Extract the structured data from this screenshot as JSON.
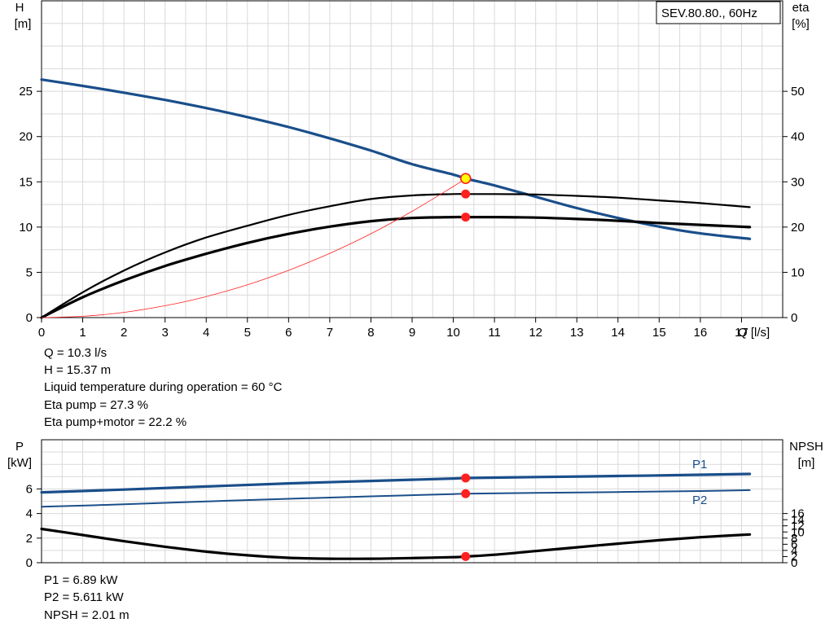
{
  "chart_data": [
    {
      "type": "line",
      "legend_box": "SEV.80.80., 60Hz",
      "xlabel": "Q [l/s]",
      "xlim": [
        0,
        18
      ],
      "x_ticks": [
        0,
        1,
        2,
        3,
        4,
        5,
        6,
        7,
        8,
        9,
        10,
        11,
        12,
        13,
        14,
        15,
        16,
        17
      ],
      "y_left": {
        "label_line1": "H",
        "label_line2": "[m]",
        "lim": [
          0,
          35
        ],
        "ticks": [
          0,
          5,
          10,
          15,
          20,
          25
        ]
      },
      "y_right": {
        "label_line1": "eta",
        "label_line2": "[%]",
        "lim": [
          0,
          70
        ],
        "ticks": [
          0,
          10,
          20,
          30,
          40,
          50
        ]
      },
      "grid": true,
      "series": [
        {
          "axis": "left",
          "color": "#1a4e8a",
          "x": [
            0,
            1,
            2,
            3,
            4,
            5,
            6,
            7,
            8,
            9,
            10,
            10.3,
            11,
            12,
            13,
            14,
            15,
            16,
            17.2
          ],
          "y": [
            26.3,
            25.6,
            24.85,
            24.05,
            23.15,
            22.15,
            21.05,
            19.8,
            18.45,
            16.95,
            15.8,
            15.37,
            14.6,
            13.35,
            12.1,
            11.0,
            10.05,
            9.3,
            8.7
          ]
        },
        {
          "axis": "right",
          "color": "#000000",
          "x": [
            0,
            1,
            2,
            3,
            4,
            5,
            6,
            7,
            8,
            9,
            10,
            10.3,
            11,
            12,
            13,
            14,
            15,
            16,
            17.2
          ],
          "y": [
            0,
            5.6,
            10.4,
            14.4,
            17.7,
            20.3,
            22.7,
            24.6,
            26.2,
            27.0,
            27.3,
            27.3,
            27.3,
            27.2,
            26.9,
            26.5,
            25.9,
            25.3,
            24.4
          ]
        },
        {
          "axis": "right",
          "color": "#000000",
          "x": [
            0,
            1,
            2,
            3,
            4,
            5,
            6,
            7,
            8,
            9,
            10,
            10.3,
            11,
            12,
            13,
            14,
            15,
            16,
            17.2
          ],
          "y": [
            0,
            4.5,
            8.2,
            11.4,
            14.1,
            16.5,
            18.5,
            20.1,
            21.3,
            22.0,
            22.2,
            22.2,
            22.2,
            22.1,
            21.8,
            21.4,
            20.9,
            20.5,
            20.0
          ]
        },
        {
          "axis": "left",
          "color": "#ff2020",
          "x": [
            0,
            1,
            2,
            3,
            4,
            5,
            6,
            7,
            8,
            9,
            10,
            10.3
          ],
          "y": [
            0,
            0.14,
            0.58,
            1.31,
            2.32,
            3.62,
            5.22,
            7.1,
            9.27,
            11.74,
            14.49,
            15.37
          ]
        }
      ],
      "operating_point": {
        "x": 10.3,
        "H": 15.37,
        "eta_pump": 27.3,
        "eta_total": 22.2
      }
    },
    {
      "type": "line",
      "y_left": {
        "label_line1": "P",
        "label_line2": "[kW]",
        "lim": [
          0,
          10
        ],
        "ticks": [
          0,
          2,
          4,
          6
        ]
      },
      "y_right": {
        "label_line1": "NPSH",
        "label_line2": "[m]",
        "lim": [
          0,
          40
        ],
        "ticks": [
          0,
          2,
          4,
          6,
          8,
          10,
          12,
          14,
          16
        ]
      },
      "xlim": [
        0,
        18
      ],
      "grid": true,
      "series": [
        {
          "name": "P1",
          "axis": "left",
          "color": "#1a4e8a",
          "x": [
            0,
            2,
            4,
            6,
            8,
            10,
            10.3,
            12,
            14,
            16,
            17.2
          ],
          "y": [
            5.72,
            5.95,
            6.2,
            6.45,
            6.65,
            6.85,
            6.89,
            6.97,
            7.05,
            7.15,
            7.22
          ]
        },
        {
          "name": "P2",
          "axis": "left",
          "color": "#1a4e8a",
          "x": [
            0,
            2,
            4,
            6,
            8,
            10,
            10.3,
            12,
            14,
            16,
            17.2
          ],
          "y": [
            4.55,
            4.75,
            4.98,
            5.2,
            5.4,
            5.58,
            5.611,
            5.68,
            5.75,
            5.83,
            5.9
          ]
        },
        {
          "axis": "right",
          "color": "#000000",
          "x": [
            0,
            1,
            2,
            3,
            4,
            5,
            6,
            7,
            8,
            9,
            10,
            10.3,
            11,
            12,
            13,
            14,
            15,
            16,
            17.2
          ],
          "y": [
            11.0,
            9.0,
            7.0,
            5.2,
            3.6,
            2.4,
            1.6,
            1.3,
            1.3,
            1.5,
            1.8,
            2.01,
            2.6,
            3.8,
            5.0,
            6.2,
            7.3,
            8.3,
            9.2
          ]
        }
      ],
      "operating_point": {
        "x": 10.3,
        "P1": 6.89,
        "P2": 5.611,
        "NPSH": 2.01
      }
    }
  ],
  "info_upper": [
    "Q = 10.3 l/s",
    "H = 15.37 m",
    "Liquid temperature during operation = 60 °C",
    "Eta pump = 27.3 %",
    "Eta pump+motor = 22.2 %"
  ],
  "info_lower": [
    "P1 = 6.89 kW",
    "P2 = 5.611 kW",
    "NPSH = 2.01 m"
  ],
  "colors": {
    "blue": "#1a4e8a",
    "black": "#000000",
    "red": "#ff2020",
    "grid": "#d9d9d9",
    "op_fill": "#ffff00"
  }
}
